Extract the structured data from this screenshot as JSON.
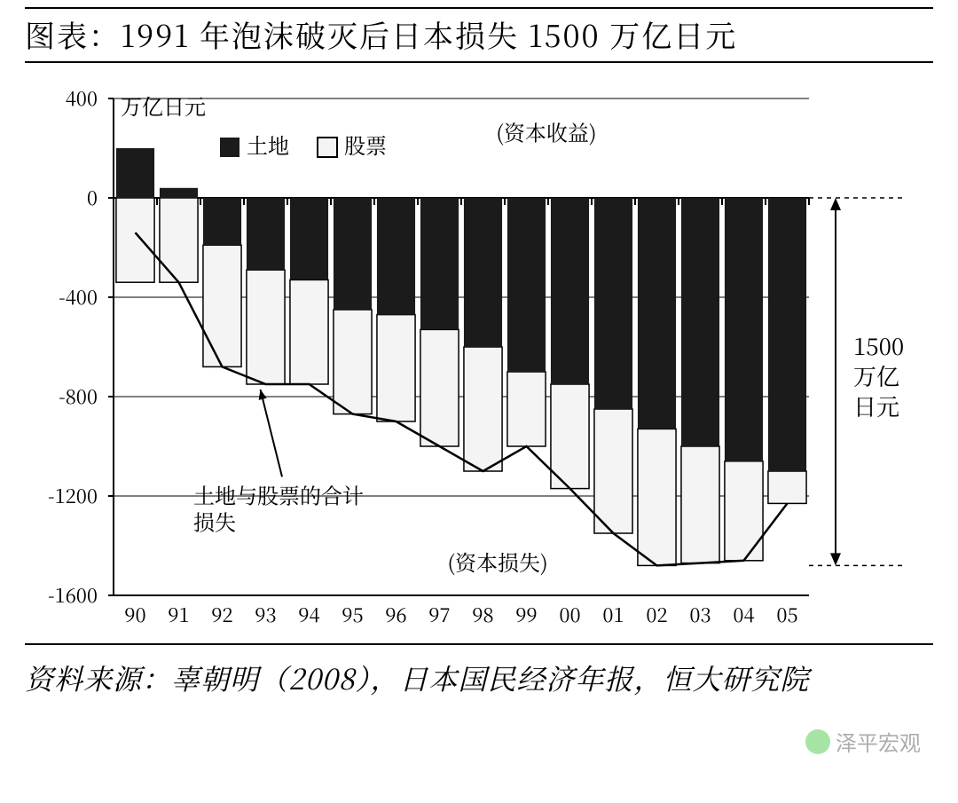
{
  "title": "图表：1991 年泡沫破灭后日本损失 1500 万亿日元",
  "source_line": "资料来源：辜朝明（2008），日本国民经济年报，恒大研究院",
  "watermark": "泽平宏观",
  "chart": {
    "type": "stacked-bar-with-line",
    "y_axis_title": "万亿日元",
    "ylim": [
      -1600,
      400
    ],
    "ytick_step": 400,
    "yticks": [
      400,
      0,
      -400,
      -800,
      -1200,
      -1600
    ],
    "x_labels": [
      "90",
      "91",
      "92",
      "93",
      "94",
      "95",
      "96",
      "97",
      "98",
      "99",
      "00",
      "01",
      "02",
      "03",
      "04",
      "05"
    ],
    "legend": {
      "land": "土地",
      "stock": "股票"
    },
    "annotation_gain": "(资本收益)",
    "annotation_loss": "(资本损失)",
    "annotation_line": "土地与股票的合计\n损失",
    "side_label": "1500\n万亿\n日元",
    "background_color": "#ffffff",
    "axis_color": "#000000",
    "grid_color": "#000000",
    "land_color": "#1b1b1b",
    "stock_color": "#f4f4f4",
    "stock_border": "#000000",
    "line_color": "#000000",
    "bar_gap_ratio": 0.12,
    "series": {
      "land_top": [
        200,
        40,
        0,
        0,
        0,
        0,
        0,
        0,
        0,
        0,
        0,
        0,
        0,
        0,
        0,
        0
      ],
      "land_bottom": [
        0,
        0,
        -190,
        -290,
        -330,
        -450,
        -470,
        -530,
        -600,
        -700,
        -750,
        -850,
        -930,
        -1000,
        -1060,
        -1100
      ],
      "stock_top": [
        0,
        0,
        0,
        0,
        0,
        0,
        0,
        0,
        0,
        0,
        0,
        0,
        0,
        0,
        0,
        0
      ],
      "stock_bottom": [
        -340,
        -340,
        -680,
        -750,
        -750,
        -870,
        -900,
        -1000,
        -1100,
        -1000,
        -1170,
        -1350,
        -1480,
        -1470,
        -1460,
        -1230
      ],
      "line": [
        -140,
        -340,
        -680,
        -750,
        -750,
        -870,
        -900,
        -1000,
        -1100,
        -1000,
        -1170,
        -1350,
        -1480,
        -1470,
        -1460,
        -1230
      ]
    },
    "range_marker": {
      "top": 0,
      "bottom": -1480
    },
    "font_sizes": {
      "axis_tick": 22,
      "axis_title": 24,
      "legend": 24,
      "annotation": 24,
      "side_label": 26
    }
  }
}
